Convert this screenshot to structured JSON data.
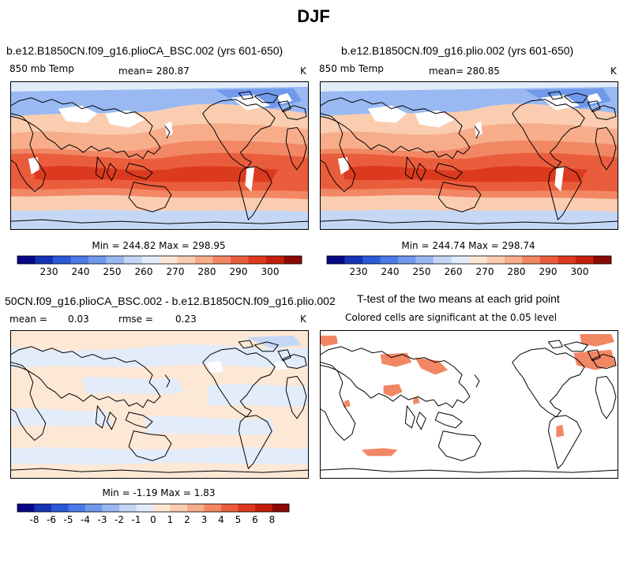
{
  "figure_title": "DJF",
  "panels": [
    {
      "title": "b.e12.B1850CN.f09_g16.plioCA_BSC.002 (yrs 601-650)",
      "variable": "850 mb Temp",
      "mean_text": "mean= 280.87",
      "units": "K",
      "minmax_text": "Min = 244.82 Max = 298.95"
    },
    {
      "title": "b.e12.B1850CN.f09_g16.plio.002 (yrs 601-650)",
      "variable": "850 mb Temp",
      "mean_text": "mean= 280.85",
      "units": "K",
      "minmax_text": "Min = 244.74 Max = 298.74"
    },
    {
      "title": "50CN.f09_g16.plioCA_BSC.002 - b.e12.B1850CN.f09_g16.plio.002",
      "mean_label": "mean =",
      "mean_value": "0.03",
      "rmse_label": "rmse =",
      "rmse_value": "0.23",
      "units": "K",
      "minmax_text": "Min =  -1.19 Max =    1.83"
    },
    {
      "title": "T-test of the two means at each grid point",
      "subtitle": "Colored cells are significant at the 0.05 level"
    }
  ],
  "colorbars": {
    "abs_labels": [
      "230",
      "240",
      "250",
      "260",
      "270",
      "280",
      "290",
      "300"
    ],
    "abs_colors": [
      "#08088a",
      "#1434b8",
      "#2a5ad8",
      "#4b7ae8",
      "#7099ec",
      "#9ab9f2",
      "#c4d8f6",
      "#e2ecfa",
      "#fde8d6",
      "#fbcdb0",
      "#f8ad8a",
      "#f28764",
      "#ea5d3c",
      "#dc3a1e",
      "#c2200c",
      "#8c0a06"
    ],
    "diff_labels": [
      "-8",
      "-6",
      "-5",
      "-4",
      "-3",
      "-2",
      "-1",
      "0",
      "1",
      "2",
      "3",
      "4",
      "5",
      "6",
      "8"
    ],
    "diff_colors": [
      "#08088a",
      "#1434b8",
      "#2a5ad8",
      "#4b7ae8",
      "#7099ec",
      "#9ab9f2",
      "#c4d8f6",
      "#e2ecfa",
      "#fde8d6",
      "#fbcdb0",
      "#f8ad8a",
      "#f28764",
      "#ea5d3c",
      "#dc3a1e",
      "#c2200c",
      "#8c0a06"
    ]
  },
  "chart_data": [
    {
      "type": "heatmap",
      "title": "b.e12.B1850CN.f09_g16.plioCA_BSC.002 (yrs 601-650)",
      "variable": "850 mb Temp",
      "units": "K",
      "mean": 280.87,
      "min": 244.82,
      "max": 298.95,
      "zlim": [
        230,
        300
      ],
      "levels": [
        230,
        240,
        250,
        260,
        270,
        280,
        290,
        300
      ]
    },
    {
      "type": "heatmap",
      "title": "b.e12.B1850CN.f09_g16.plio.002 (yrs 601-650)",
      "variable": "850 mb Temp",
      "units": "K",
      "mean": 280.85,
      "min": 244.74,
      "max": 298.74,
      "zlim": [
        230,
        300
      ],
      "levels": [
        230,
        240,
        250,
        260,
        270,
        280,
        290,
        300
      ]
    },
    {
      "type": "heatmap",
      "title": "50CN.f09_g16.plioCA_BSC.002 - b.e12.B1850CN.f09_g16.plio.002",
      "units": "K",
      "mean": 0.03,
      "rmse": 0.23,
      "min": -1.19,
      "max": 1.83,
      "levels": [
        -8,
        -6,
        -5,
        -4,
        -3,
        -2,
        -1,
        0,
        1,
        2,
        3,
        4,
        5,
        6,
        8
      ]
    },
    {
      "type": "heatmap",
      "title": "T-test of the two means at each grid point",
      "subtitle": "Colored cells are significant at the 0.05 level",
      "significance_level": 0.05
    }
  ]
}
